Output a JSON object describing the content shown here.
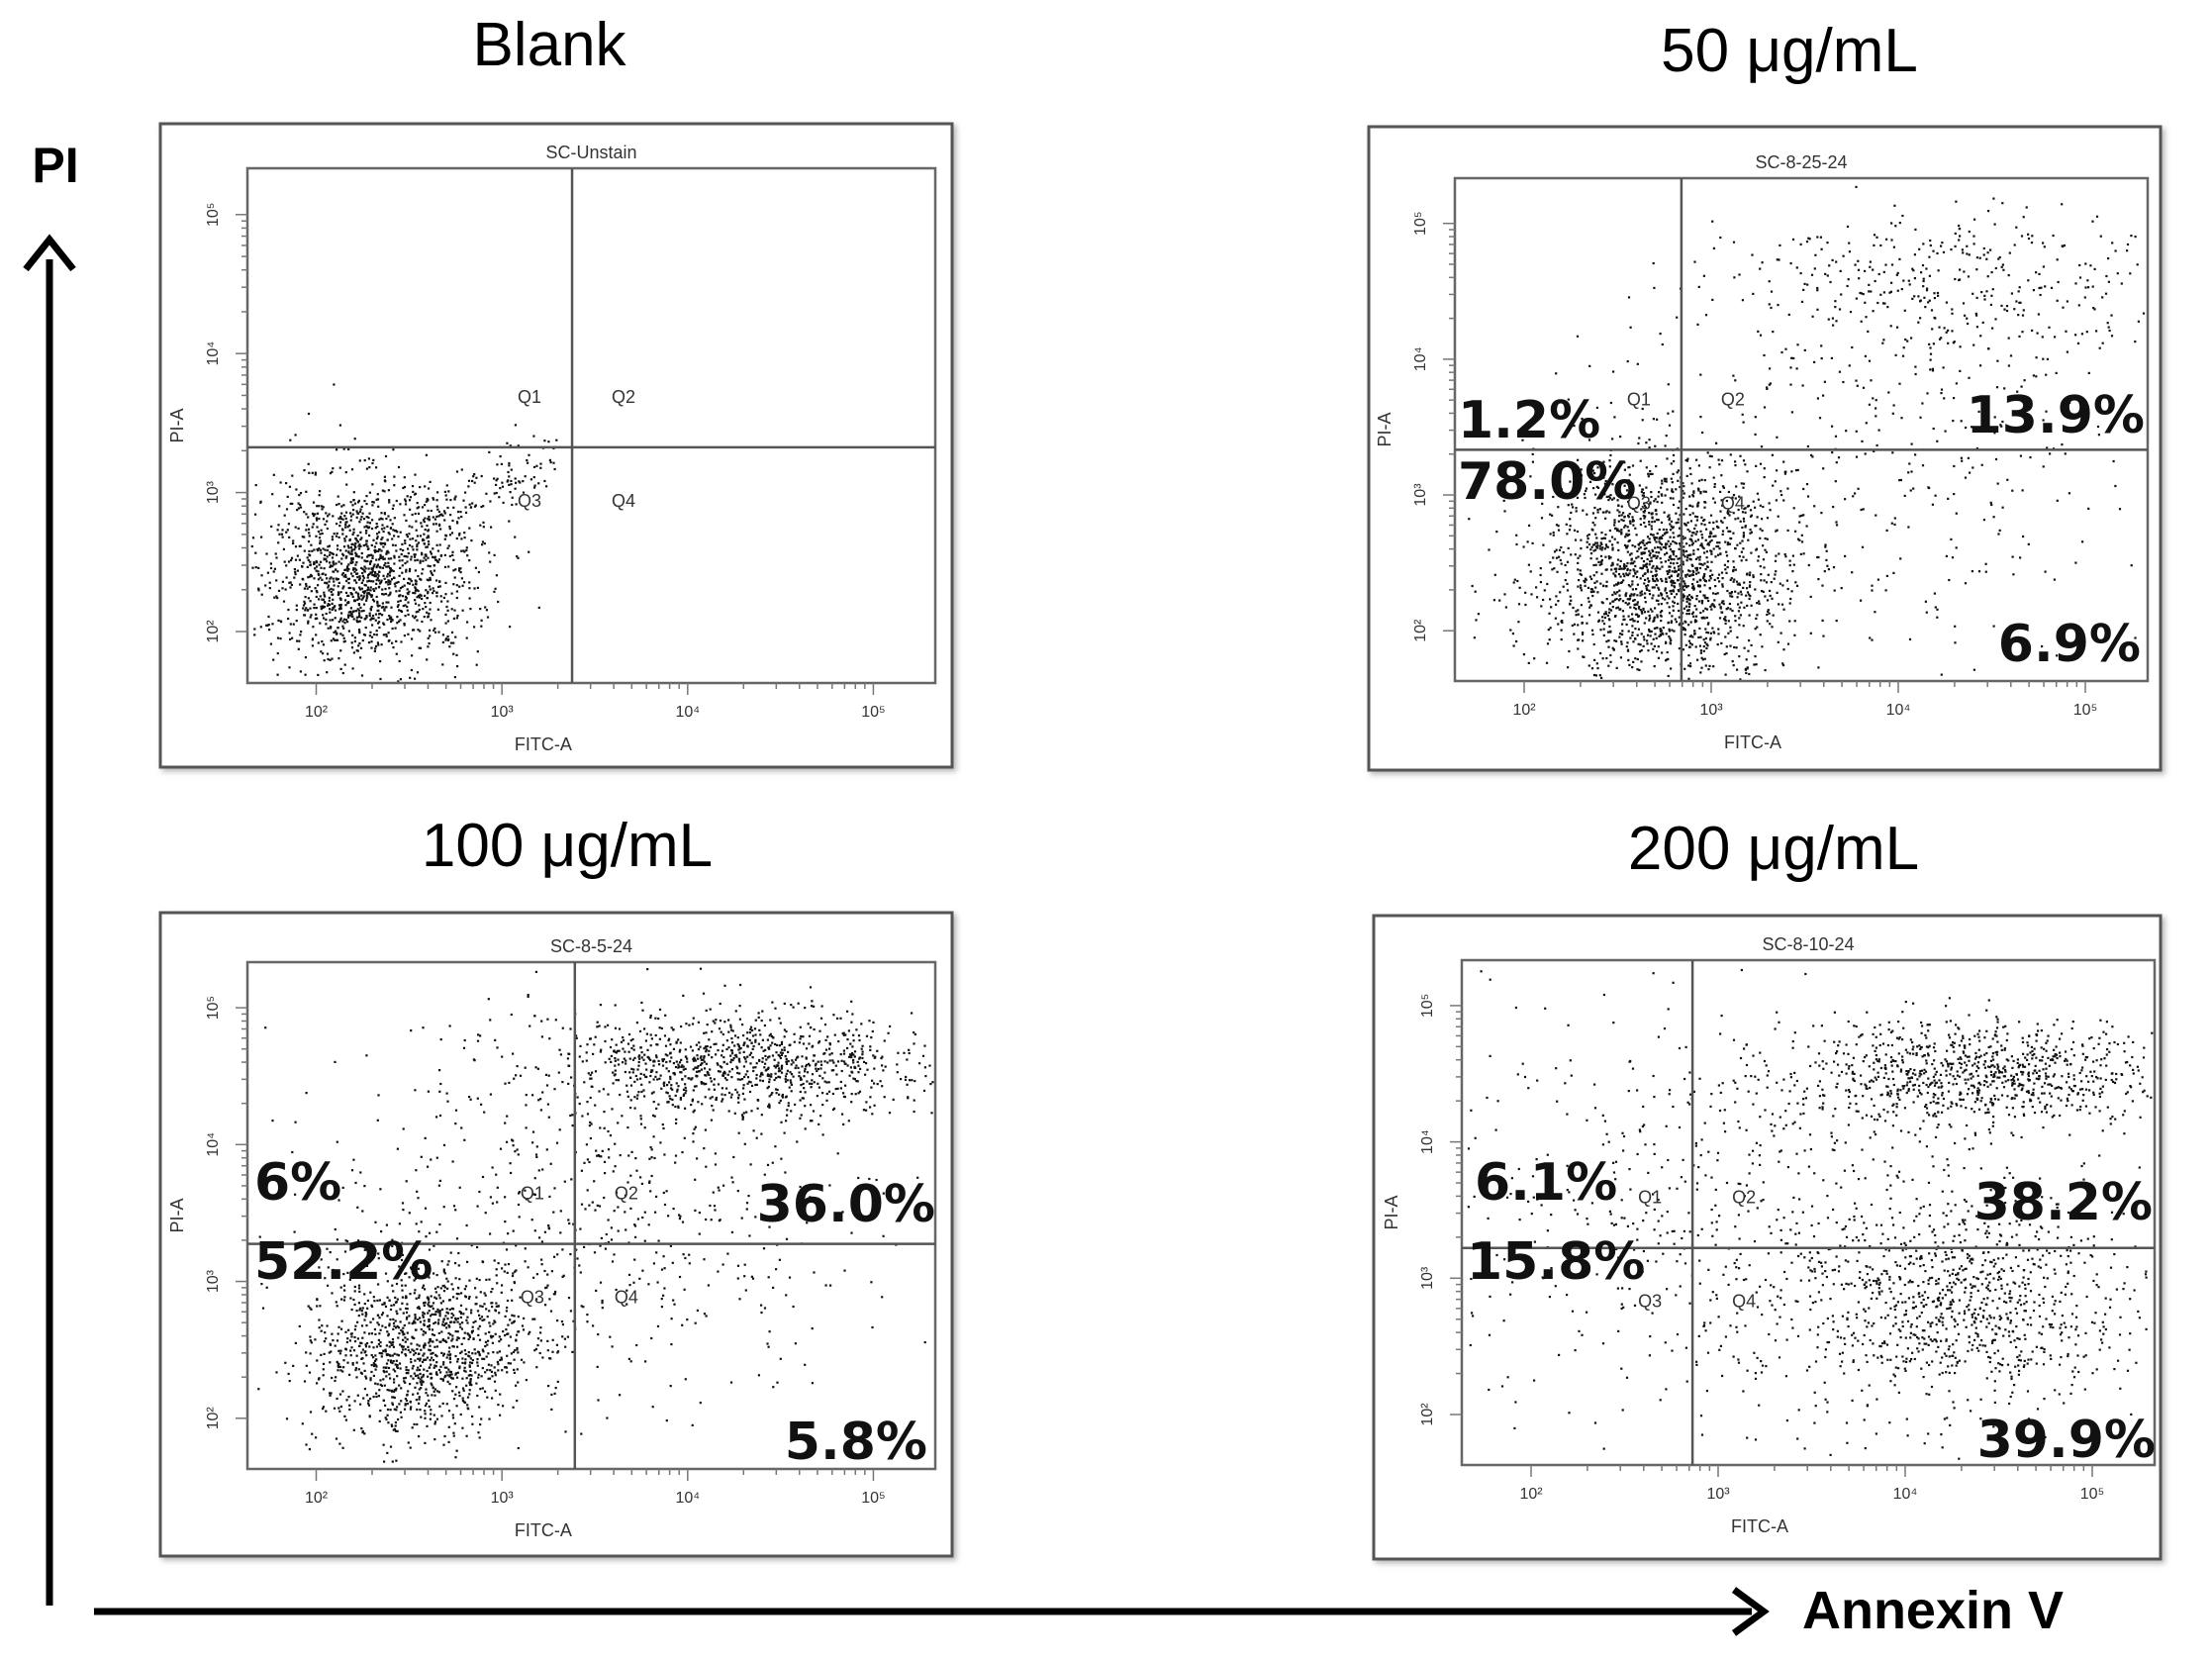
{
  "figure": {
    "y_axis_label": "PI",
    "x_axis_label": "Annexin V"
  },
  "chart_data": [
    {
      "type": "scatter",
      "title": "Blank",
      "plot_header": "SC-Unstain",
      "xlabel": "FITC-A",
      "ylabel": "PI-A",
      "x_ticks": [
        "10²",
        "10³",
        "10⁴",
        "10⁵"
      ],
      "y_ticks": [
        "10²",
        "10³",
        "10⁴",
        "10⁵"
      ],
      "quadrant_labels": [
        "Q1",
        "Q2",
        "Q3",
        "Q4"
      ],
      "percentages": {
        "Q1": "",
        "Q2": "",
        "Q3": "",
        "Q4": ""
      },
      "populations": [
        {
          "cx": 0.17,
          "cy": 0.78,
          "sx": 0.08,
          "sy": 0.09,
          "n": 1500
        },
        {
          "cx": 0.33,
          "cy": 0.58,
          "sx": 0.07,
          "sy": 0.04,
          "n": 130
        }
      ]
    },
    {
      "type": "scatter",
      "title": "50 μg/mL",
      "plot_header": "SC-8-25-24",
      "xlabel": "FITC-A",
      "ylabel": "PI-A",
      "x_ticks": [
        "10²",
        "10³",
        "10⁴",
        "10⁵"
      ],
      "y_ticks": [
        "10²",
        "10³",
        "10⁴",
        "10⁵"
      ],
      "quadrant_labels": [
        "Q1",
        "Q2",
        "Q3",
        "Q4"
      ],
      "percentages": {
        "Q1": "1.2%",
        "Q2": "13.9%",
        "Q3": "78.0%",
        "Q4": "6.9%"
      },
      "populations": [
        {
          "cx": 0.3,
          "cy": 0.78,
          "sx": 0.09,
          "sy": 0.11,
          "n": 1800
        },
        {
          "cx": 0.72,
          "cy": 0.22,
          "sx": 0.16,
          "sy": 0.08,
          "n": 400
        },
        {
          "cx": 0.58,
          "cy": 0.55,
          "sx": 0.2,
          "sy": 0.18,
          "n": 350
        }
      ]
    },
    {
      "type": "scatter",
      "title": "100 μg/mL",
      "plot_header": "SC-8-5-24",
      "xlabel": "FITC-A",
      "ylabel": "PI-A",
      "x_ticks": [
        "10²",
        "10³",
        "10⁴",
        "10⁵"
      ],
      "y_ticks": [
        "10²",
        "10³",
        "10⁴",
        "10⁵"
      ],
      "quadrant_labels": [
        "Q1",
        "Q2",
        "Q3",
        "Q4"
      ],
      "percentages": {
        "Q1": "6%",
        "Q2": "36.0%",
        "Q3": "52.2%",
        "Q4": "5.8%"
      },
      "populations": [
        {
          "cx": 0.25,
          "cy": 0.76,
          "sx": 0.08,
          "sy": 0.09,
          "n": 1200
        },
        {
          "cx": 0.72,
          "cy": 0.2,
          "sx": 0.14,
          "sy": 0.05,
          "n": 1000
        },
        {
          "cx": 0.5,
          "cy": 0.48,
          "sx": 0.2,
          "sy": 0.2,
          "n": 650
        }
      ]
    },
    {
      "type": "scatter",
      "title": "200 μg/mL",
      "plot_header": "SC-8-10-24",
      "xlabel": "FITC-A",
      "ylabel": "PI-A",
      "x_ticks": [
        "10²",
        "10³",
        "10⁴",
        "10⁵"
      ],
      "y_ticks": [
        "10²",
        "10³",
        "10⁴",
        "10⁵"
      ],
      "quadrant_labels": [
        "Q1",
        "Q2",
        "Q3",
        "Q4"
      ],
      "percentages": {
        "Q1": "6.1%",
        "Q2": "38.2%",
        "Q3": "15.8%",
        "Q4": "39.9%"
      },
      "populations": [
        {
          "cx": 0.75,
          "cy": 0.22,
          "sx": 0.14,
          "sy": 0.05,
          "n": 900
        },
        {
          "cx": 0.72,
          "cy": 0.68,
          "sx": 0.12,
          "sy": 0.1,
          "n": 900
        },
        {
          "cx": 0.4,
          "cy": 0.5,
          "sx": 0.22,
          "sy": 0.22,
          "n": 700
        }
      ]
    }
  ]
}
